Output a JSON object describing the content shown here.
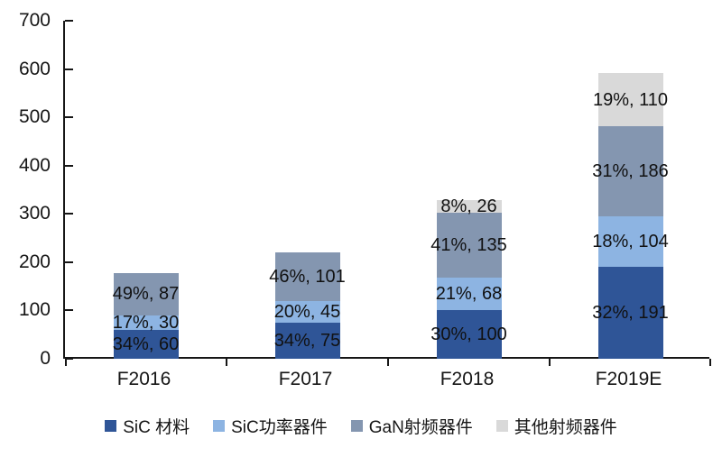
{
  "chart_data": {
    "type": "bar",
    "stacked": true,
    "title": "",
    "xlabel": "",
    "ylabel": "",
    "categories": [
      "F2016",
      "F2017",
      "F2018",
      "F2019E"
    ],
    "series": [
      {
        "name": "SiC 材料",
        "color": "#2F5597",
        "values": [
          60,
          75,
          100,
          191
        ],
        "percents": [
          34,
          34,
          30,
          32
        ]
      },
      {
        "name": "SiC功率器件",
        "color": "#8DB4E2",
        "values": [
          30,
          45,
          68,
          104
        ],
        "percents": [
          17,
          20,
          21,
          18
        ]
      },
      {
        "name": "GaN射频器件",
        "color": "#8496B0",
        "values": [
          87,
          101,
          135,
          186
        ],
        "percents": [
          49,
          46,
          41,
          31
        ]
      },
      {
        "name": "其他射频器件",
        "color": "#D9D9D9",
        "values": [
          0,
          0,
          26,
          110
        ],
        "percents": [
          null,
          null,
          8,
          19
        ]
      }
    ],
    "segment_labels": [
      [
        "34%, 60",
        "34%, 75",
        "30%, 100",
        "32%, 191"
      ],
      [
        "17%, 30",
        "20%, 45",
        "21%, 68",
        "18%, 104"
      ],
      [
        "49%, 87",
        "46%, 101",
        "41%, 135",
        "31%, 186"
      ],
      [
        "",
        "",
        "8%, 26",
        "19%, 110"
      ]
    ],
    "ylim": [
      0,
      700
    ],
    "y_ticks": [
      0,
      100,
      200,
      300,
      400,
      500,
      600,
      700
    ],
    "grid": false,
    "legend_position": "bottom",
    "axis_color": "#161616",
    "label_color": "#111111"
  }
}
